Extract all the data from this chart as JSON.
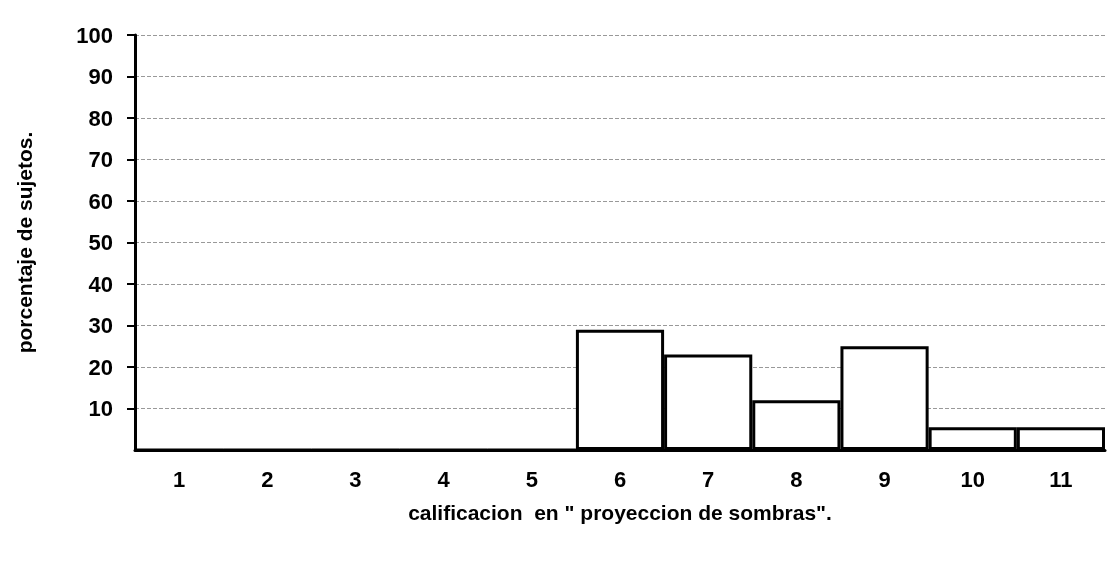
{
  "chart_data": {
    "type": "bar",
    "xlabel": "calificacion  en \" proyeccion de sombras\".",
    "ylabel": "porcentaje de sujetos.",
    "categories": [
      "1",
      "2",
      "3",
      "4",
      "5",
      "6",
      "7",
      "8",
      "9",
      "10",
      "11"
    ],
    "values": [
      0,
      0,
      0,
      0,
      0,
      29,
      23,
      12,
      25,
      5.5,
      5.5
    ],
    "color": "#ffffff",
    "ylim": [
      0,
      100
    ],
    "yticks": [
      10,
      20,
      30,
      40,
      50,
      60,
      70,
      80,
      90,
      100
    ],
    "grid": "y"
  }
}
